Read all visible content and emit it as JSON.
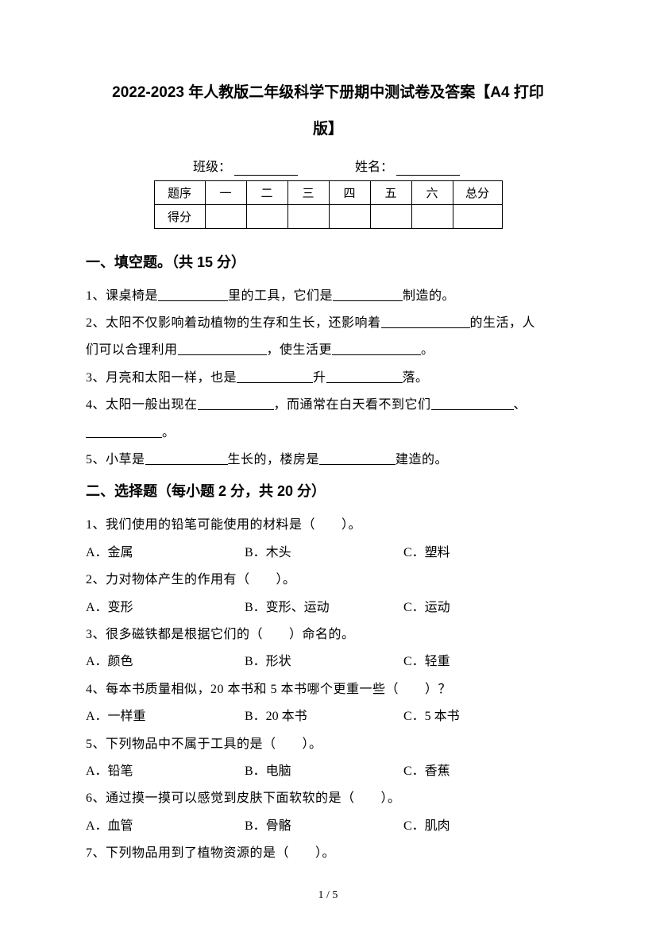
{
  "title_line1": "2022-2023 年人教版二年级科学下册期中测试卷及答案【A4 打印",
  "title_line2": "版】",
  "class_label": "班级：",
  "name_label": "姓名：",
  "score_table": {
    "row1": [
      "题序",
      "一",
      "二",
      "三",
      "四",
      "五",
      "六",
      "总分"
    ],
    "row2_label": "得分"
  },
  "section1": {
    "heading": "一、填空题。（共 15 分）",
    "q1_a": "1、课桌椅是",
    "q1_b": "里的工具，它们是",
    "q1_c": "制造的。",
    "q2_a": "2、太阳不仅影响着动植物的生存和生长，还影响着",
    "q2_b": "的生活，人",
    "q2_c": "们可以合理利用",
    "q2_d": "，使生活更",
    "q2_e": "。",
    "q3_a": "3、月亮和太阳一样，也是",
    "q3_b": "升",
    "q3_c": "落。",
    "q4_a": "4、太阳一般出现在",
    "q4_b": "，而通常在白天看不到它们",
    "q4_c": "、",
    "q4_d": "。",
    "q5_a": "5、小草是",
    "q5_b": "生长的，楼房是",
    "q5_c": "建造的。"
  },
  "section2": {
    "heading": "二、选择题（每小题 2 分，共 20 分）",
    "q1": "1、我们使用的铅笔可能使用的材料是（　　）。",
    "q1_opts": [
      "A．金属",
      "B．木头",
      "C．塑料"
    ],
    "q2": "2、力对物体产生的作用有（　　）。",
    "q2_opts": [
      "A．变形",
      "B．变形、运动",
      "C．运动"
    ],
    "q3": "3、很多磁铁都是根据它们的（　　）命名的。",
    "q3_opts": [
      "A．颜色",
      "B．形状",
      "C．轻重"
    ],
    "q4": "4、每本书质量相似，20 本书和 5 本书哪个更重一些（　　）？",
    "q4_opts": [
      "A．一样重",
      "B．20 本书",
      "C．5 本书"
    ],
    "q5": "5、下列物品中不属于工具的是（　　）。",
    "q5_opts": [
      "A．铅笔",
      "B．电脑",
      "C．香蕉"
    ],
    "q6": "6、通过摸一摸可以感觉到皮肤下面软软的是（　　）。",
    "q6_opts": [
      "A．血管",
      "B．骨骼",
      "C．肌肉"
    ],
    "q7": "7、下列物品用到了植物资源的是（　　）。"
  },
  "footer": "1 / 5"
}
